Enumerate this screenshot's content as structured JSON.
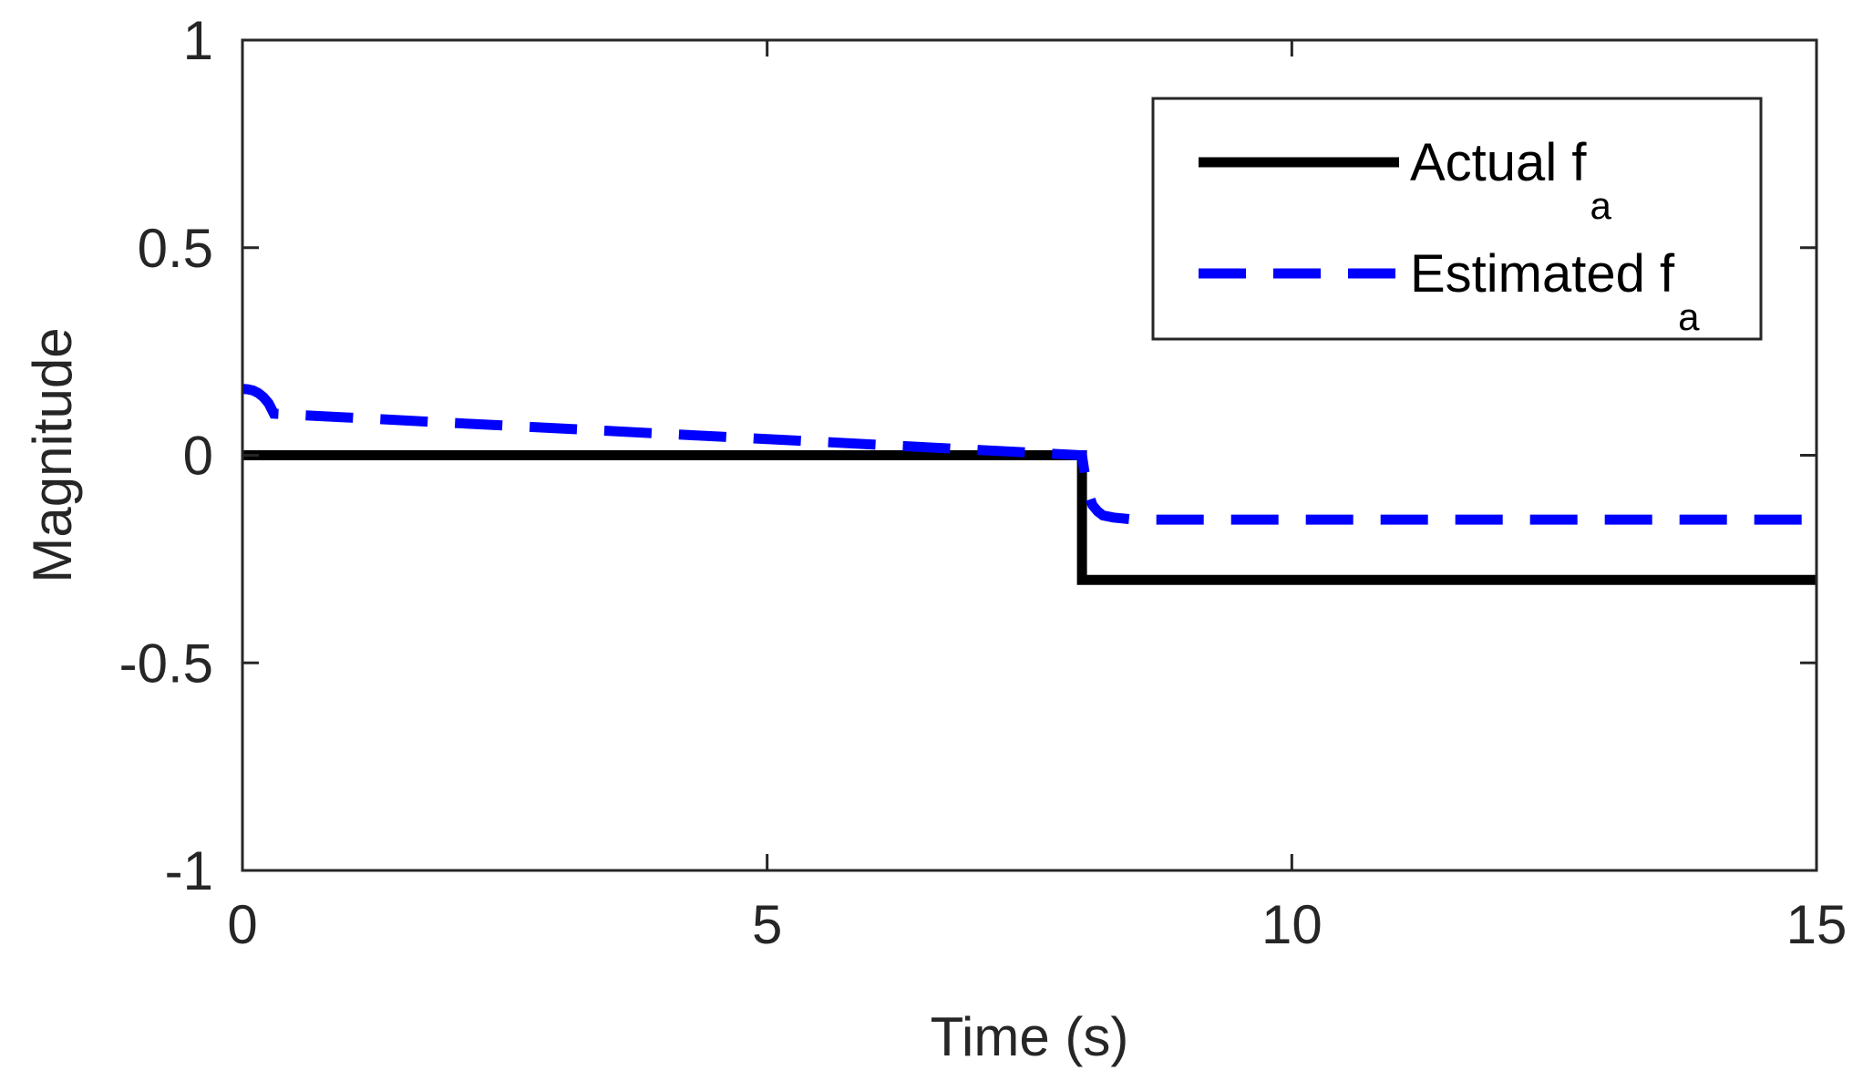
{
  "chart_data": {
    "type": "line",
    "title": "",
    "xlabel": "Time (s)",
    "ylabel": "Magnitude",
    "xlim": [
      0,
      15
    ],
    "ylim": [
      -1,
      1
    ],
    "x_ticks": [
      0,
      5,
      10,
      15
    ],
    "x_tick_labels": [
      "0",
      "5",
      "10",
      "15"
    ],
    "y_ticks": [
      1,
      0.5,
      0,
      -0.5,
      -1
    ],
    "y_tick_labels": [
      "1",
      "0.5",
      "0",
      "-0.5",
      "-1"
    ],
    "grid": false,
    "legend_position": "top-right",
    "series": [
      {
        "name": "Actual f",
        "name_subscript": "a",
        "color": "#000000",
        "style": "solid",
        "x": [
          0,
          8,
          8,
          15
        ],
        "y": [
          0,
          0,
          -0.3,
          -0.3
        ]
      },
      {
        "name": "Estimated f",
        "name_subscript": "a",
        "color": "#0000ff",
        "style": "dashed",
        "x": [
          0,
          0.05,
          0.1,
          0.15,
          0.2,
          0.25,
          0.3,
          8,
          8.03,
          8.06,
          8.1,
          8.15,
          8.2,
          8.3,
          8.5,
          15
        ],
        "y": [
          0.16,
          0.159,
          0.156,
          0.15,
          0.14,
          0.125,
          0.1,
          0,
          -0.05,
          -0.09,
          -0.12,
          -0.135,
          -0.145,
          -0.15,
          -0.155,
          -0.155
        ]
      }
    ]
  }
}
